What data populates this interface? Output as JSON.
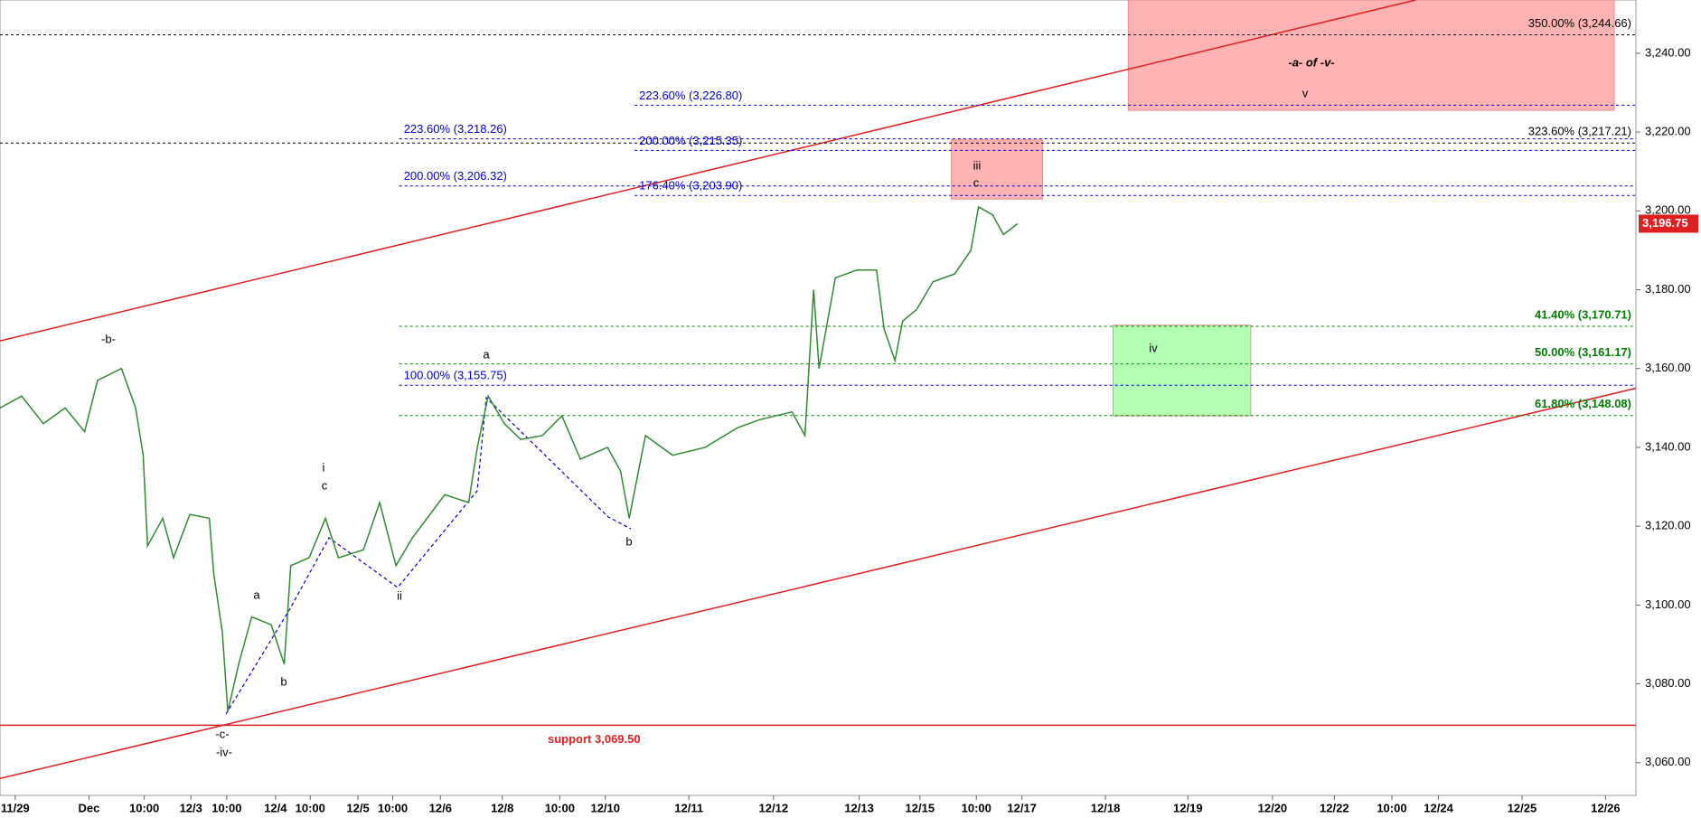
{
  "chart_data": {
    "type": "line",
    "series": [
      {
        "name": "Price",
        "color": "#2e8b2e",
        "x": [
          0,
          20,
          40,
          60,
          78,
          90,
          112,
          125,
          132,
          136,
          150,
          160,
          175,
          193,
          197,
          205,
          210,
          220,
          232,
          250,
          262,
          268,
          285,
          300,
          312,
          335,
          350,
          365,
          380,
          410,
          432,
          440,
          450,
          465,
          480,
          500,
          518,
          535,
          560,
          572,
          580,
          595,
          620,
          650,
          680,
          700,
          730,
          742,
          750,
          755,
          770,
          790,
          808,
          815,
          825,
          832,
          845,
          860,
          880,
          895,
          902,
          915,
          925,
          938
        ],
        "values": [
          3150,
          3153,
          3146,
          3150,
          3144,
          3157,
          3160,
          3150,
          3138,
          3115,
          3122,
          3112,
          3123,
          3122,
          3108,
          3093,
          3073,
          3085,
          3097,
          3095,
          3085,
          3110,
          3112,
          3122,
          3112,
          3114,
          3126,
          3110,
          3117,
          3128,
          3126,
          3140,
          3153,
          3146,
          3142,
          3143,
          3148,
          3137,
          3140,
          3134,
          3122,
          3143,
          3138,
          3140,
          3145,
          3147,
          3149,
          3143,
          3180,
          3160,
          3183,
          3185,
          3185,
          3170,
          3162,
          3172,
          3175,
          3182,
          3184,
          3190,
          3201,
          3199,
          3194,
          3196.75
        ]
      }
    ],
    "last_price": {
      "value": 3196.75,
      "label": "3,196.75"
    },
    "xlim": [
      0,
      1508
    ],
    "xticks": [
      {
        "value": 14,
        "label": "11/29"
      },
      {
        "value": 82,
        "label": "Dec"
      },
      {
        "value": 133,
        "label": "10:00"
      },
      {
        "value": 176,
        "label": "12/3"
      },
      {
        "value": 209,
        "label": "10:00"
      },
      {
        "value": 254,
        "label": "12/4"
      },
      {
        "value": 286,
        "label": "10:00"
      },
      {
        "value": 330,
        "label": "12/5"
      },
      {
        "value": 362,
        "label": "10:00"
      },
      {
        "value": 406,
        "label": "12/6"
      },
      {
        "value": 463,
        "label": "12/8"
      },
      {
        "value": 516,
        "label": "10:00"
      },
      {
        "value": 558,
        "label": "12/10"
      },
      {
        "value": 635,
        "label": "12/11"
      },
      {
        "value": 713,
        "label": "12/12"
      },
      {
        "value": 792,
        "label": "12/13"
      },
      {
        "value": 848,
        "label": "12/15"
      },
      {
        "value": 900,
        "label": "10:00"
      },
      {
        "value": 942,
        "label": "12/17"
      },
      {
        "value": 1019,
        "label": "12/18"
      },
      {
        "value": 1095,
        "label": "12/19"
      },
      {
        "value": 1173,
        "label": "12/20"
      },
      {
        "value": 1230,
        "label": "12/22"
      },
      {
        "value": 1283,
        "label": "10:00"
      },
      {
        "value": 1326,
        "label": "12/24"
      },
      {
        "value": 1403,
        "label": "12/25"
      },
      {
        "value": 1480,
        "label": "12/26"
      }
    ],
    "ylim": [
      3051.7,
      3253.5
    ],
    "yticks": [
      {
        "value": 3060,
        "label": "3,060.00"
      },
      {
        "value": 3080,
        "label": "3,080.00"
      },
      {
        "value": 3100,
        "label": "3,100.00"
      },
      {
        "value": 3120,
        "label": "3,120.00"
      },
      {
        "value": 3140,
        "label": "3,140.00"
      },
      {
        "value": 3160,
        "label": "3,160.00"
      },
      {
        "value": 3180,
        "label": "3,180.00"
      },
      {
        "value": 3200,
        "label": "3,200.00"
      },
      {
        "value": 3220,
        "label": "3,220.00"
      },
      {
        "value": 3240,
        "label": "3,240.00"
      }
    ],
    "levels": [
      {
        "value": 3244.66,
        "label": "350.00% (3,244.66)",
        "color": "#000000",
        "x0": 0,
        "side": "right"
      },
      {
        "value": 3217.21,
        "label": "323.60% (3,217.21)",
        "color": "#000000",
        "x0": 0,
        "side": "right"
      },
      {
        "value": 3226.8,
        "label": "223.60% (3,226.80)",
        "color": "#0000cc",
        "x0": 585,
        "side": "left"
      },
      {
        "value": 3215.35,
        "label": "200.00% (3,215.35)",
        "color": "#0000cc",
        "x0": 585,
        "side": "left"
      },
      {
        "value": 3203.9,
        "label": "176.40% (3,203.90)",
        "color": "#0000cc",
        "x0": 585,
        "side": "left"
      },
      {
        "value": 3218.26,
        "label": "223.60% (3,218.26)",
        "color": "#0000cc",
        "x0": 368,
        "side": "left"
      },
      {
        "value": 3206.32,
        "label": "200.00% (3,206.32)",
        "color": "#0000cc",
        "x0": 368,
        "side": "left"
      },
      {
        "value": 3155.75,
        "label": "100.00% (3,155.75)",
        "color": "#0000cc",
        "x0": 368,
        "side": "left"
      },
      {
        "value": 3170.71,
        "label": "41.40% (3,170.71)",
        "color": "#008000",
        "x0": 368,
        "side": "right"
      },
      {
        "value": 3161.17,
        "label": "50.00% (3,161.17)",
        "color": "#008000",
        "x0": 368,
        "side": "right"
      },
      {
        "value": 3148.08,
        "label": "61.80% (3,148.08)",
        "color": "#008000",
        "x0": 368,
        "side": "right"
      }
    ],
    "support": {
      "value": 3069.5,
      "label": "support 3,069.50",
      "color": "#e02020"
    },
    "channel": [
      {
        "x": [
          0,
          1305
        ],
        "values": [
          3167,
          3253.5
        ]
      },
      {
        "x": [
          0,
          1508
        ],
        "values": [
          3056,
          3155
        ]
      }
    ],
    "zones": [
      {
        "x": [
          1040,
          1488
        ],
        "values": [
          3225.5,
          3253.5
        ],
        "color": "#ffb3b3"
      },
      {
        "x": [
          877,
          961
        ],
        "values": [
          3203,
          3218
        ],
        "color": "#ffb3b3"
      },
      {
        "x": [
          1026,
          1153
        ],
        "values": [
          3148,
          3171
        ],
        "color": "#b3ffb3"
      }
    ],
    "annotations": [
      "-b-",
      "a",
      "i",
      "c",
      "a",
      "b",
      "ii",
      "b",
      "-c-",
      "-iv-",
      "iii",
      "c",
      "v",
      "iv",
      "-a- of -v-"
    ]
  }
}
